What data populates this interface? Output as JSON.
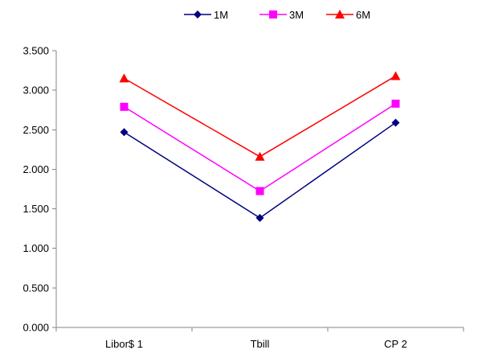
{
  "chart_data": {
    "type": "line",
    "categories": [
      "Libor$ 1",
      "Tbill",
      "CP 2"
    ],
    "series": [
      {
        "name": "1M",
        "values": [
          2.47,
          1.385,
          2.59
        ],
        "color": "#000080",
        "marker": "diamond"
      },
      {
        "name": "3M",
        "values": [
          2.79,
          1.725,
          2.83
        ],
        "color": "#ff00ff",
        "marker": "square"
      },
      {
        "name": "6M",
        "values": [
          3.15,
          2.16,
          3.18
        ],
        "color": "#ff0000",
        "marker": "triangle"
      }
    ],
    "y_ticks": [
      "0.000",
      "0.500",
      "1.000",
      "1.500",
      "2.000",
      "2.500",
      "3.000",
      "3.500"
    ],
    "ylim": [
      0,
      3.5
    ],
    "grid": false,
    "legend_position": "top-center"
  }
}
